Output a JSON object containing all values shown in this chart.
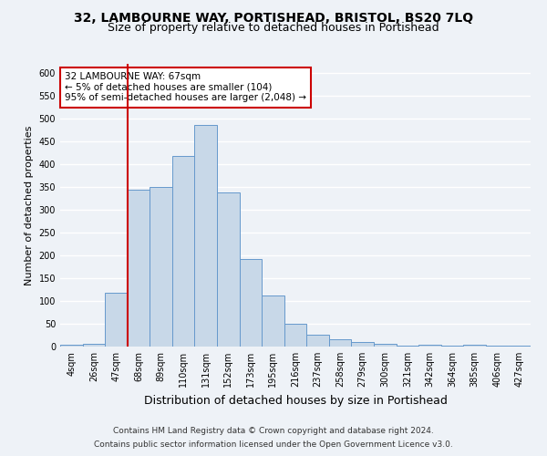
{
  "title1": "32, LAMBOURNE WAY, PORTISHEAD, BRISTOL, BS20 7LQ",
  "title2": "Size of property relative to detached houses in Portishead",
  "xlabel": "Distribution of detached houses by size in Portishead",
  "ylabel": "Number of detached properties",
  "categories": [
    "4sqm",
    "26sqm",
    "47sqm",
    "68sqm",
    "89sqm",
    "110sqm",
    "131sqm",
    "152sqm",
    "173sqm",
    "195sqm",
    "216sqm",
    "237sqm",
    "258sqm",
    "279sqm",
    "300sqm",
    "321sqm",
    "342sqm",
    "364sqm",
    "385sqm",
    "406sqm",
    "427sqm"
  ],
  "values": [
    5,
    7,
    119,
    345,
    350,
    418,
    487,
    338,
    193,
    112,
    50,
    27,
    17,
    10,
    6,
    3,
    5,
    3,
    5,
    3,
    3
  ],
  "bar_color": "#c8d8e8",
  "bar_edge_color": "#6699cc",
  "red_line_index": 3,
  "annotation_text": "32 LAMBOURNE WAY: 67sqm\n← 5% of detached houses are smaller (104)\n95% of semi-detached houses are larger (2,048) →",
  "annotation_box_color": "#ffffff",
  "annotation_box_edge": "#cc0000",
  "ylim": [
    0,
    620
  ],
  "yticks": [
    0,
    50,
    100,
    150,
    200,
    250,
    300,
    350,
    400,
    450,
    500,
    550,
    600
  ],
  "footer1": "Contains HM Land Registry data © Crown copyright and database right 2024.",
  "footer2": "Contains public sector information licensed under the Open Government Licence v3.0.",
  "bg_color": "#eef2f7",
  "grid_color": "#ffffff",
  "title1_fontsize": 10,
  "title2_fontsize": 9,
  "xlabel_fontsize": 9,
  "ylabel_fontsize": 8,
  "tick_fontsize": 7,
  "annot_fontsize": 7.5,
  "footer_fontsize": 6.5
}
